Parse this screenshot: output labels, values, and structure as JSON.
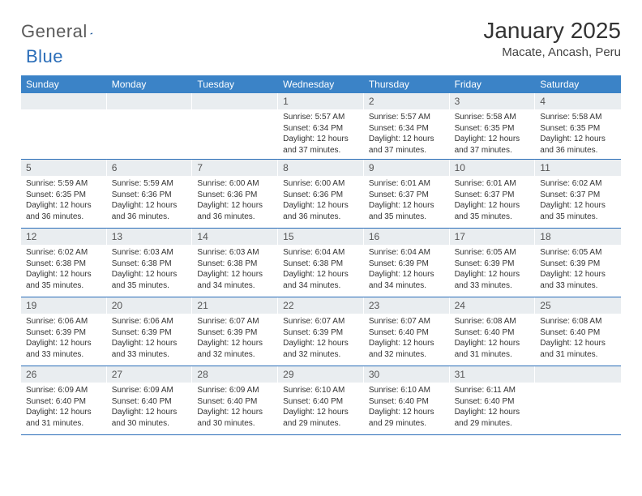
{
  "brand": {
    "part1": "General",
    "part2": "Blue"
  },
  "title": "January 2025",
  "subtitle": "Macate, Ancash, Peru",
  "colors": {
    "header_bg": "#3b83c7",
    "daynum_bg": "#e9edf0",
    "rule": "#2a6db8",
    "text": "#333333",
    "logo_gray": "#5a5a5a",
    "logo_blue": "#2a6db8",
    "bg": "#ffffff"
  },
  "day_names": [
    "Sunday",
    "Monday",
    "Tuesday",
    "Wednesday",
    "Thursday",
    "Friday",
    "Saturday"
  ],
  "weeks": [
    [
      null,
      null,
      null,
      {
        "n": "1",
        "rise": "5:57 AM",
        "set": "6:34 PM",
        "day": "12 hours and 37 minutes."
      },
      {
        "n": "2",
        "rise": "5:57 AM",
        "set": "6:34 PM",
        "day": "12 hours and 37 minutes."
      },
      {
        "n": "3",
        "rise": "5:58 AM",
        "set": "6:35 PM",
        "day": "12 hours and 37 minutes."
      },
      {
        "n": "4",
        "rise": "5:58 AM",
        "set": "6:35 PM",
        "day": "12 hours and 36 minutes."
      }
    ],
    [
      {
        "n": "5",
        "rise": "5:59 AM",
        "set": "6:35 PM",
        "day": "12 hours and 36 minutes."
      },
      {
        "n": "6",
        "rise": "5:59 AM",
        "set": "6:36 PM",
        "day": "12 hours and 36 minutes."
      },
      {
        "n": "7",
        "rise": "6:00 AM",
        "set": "6:36 PM",
        "day": "12 hours and 36 minutes."
      },
      {
        "n": "8",
        "rise": "6:00 AM",
        "set": "6:36 PM",
        "day": "12 hours and 36 minutes."
      },
      {
        "n": "9",
        "rise": "6:01 AM",
        "set": "6:37 PM",
        "day": "12 hours and 35 minutes."
      },
      {
        "n": "10",
        "rise": "6:01 AM",
        "set": "6:37 PM",
        "day": "12 hours and 35 minutes."
      },
      {
        "n": "11",
        "rise": "6:02 AM",
        "set": "6:37 PM",
        "day": "12 hours and 35 minutes."
      }
    ],
    [
      {
        "n": "12",
        "rise": "6:02 AM",
        "set": "6:38 PM",
        "day": "12 hours and 35 minutes."
      },
      {
        "n": "13",
        "rise": "6:03 AM",
        "set": "6:38 PM",
        "day": "12 hours and 35 minutes."
      },
      {
        "n": "14",
        "rise": "6:03 AM",
        "set": "6:38 PM",
        "day": "12 hours and 34 minutes."
      },
      {
        "n": "15",
        "rise": "6:04 AM",
        "set": "6:38 PM",
        "day": "12 hours and 34 minutes."
      },
      {
        "n": "16",
        "rise": "6:04 AM",
        "set": "6:39 PM",
        "day": "12 hours and 34 minutes."
      },
      {
        "n": "17",
        "rise": "6:05 AM",
        "set": "6:39 PM",
        "day": "12 hours and 33 minutes."
      },
      {
        "n": "18",
        "rise": "6:05 AM",
        "set": "6:39 PM",
        "day": "12 hours and 33 minutes."
      }
    ],
    [
      {
        "n": "19",
        "rise": "6:06 AM",
        "set": "6:39 PM",
        "day": "12 hours and 33 minutes."
      },
      {
        "n": "20",
        "rise": "6:06 AM",
        "set": "6:39 PM",
        "day": "12 hours and 33 minutes."
      },
      {
        "n": "21",
        "rise": "6:07 AM",
        "set": "6:39 PM",
        "day": "12 hours and 32 minutes."
      },
      {
        "n": "22",
        "rise": "6:07 AM",
        "set": "6:39 PM",
        "day": "12 hours and 32 minutes."
      },
      {
        "n": "23",
        "rise": "6:07 AM",
        "set": "6:40 PM",
        "day": "12 hours and 32 minutes."
      },
      {
        "n": "24",
        "rise": "6:08 AM",
        "set": "6:40 PM",
        "day": "12 hours and 31 minutes."
      },
      {
        "n": "25",
        "rise": "6:08 AM",
        "set": "6:40 PM",
        "day": "12 hours and 31 minutes."
      }
    ],
    [
      {
        "n": "26",
        "rise": "6:09 AM",
        "set": "6:40 PM",
        "day": "12 hours and 31 minutes."
      },
      {
        "n": "27",
        "rise": "6:09 AM",
        "set": "6:40 PM",
        "day": "12 hours and 30 minutes."
      },
      {
        "n": "28",
        "rise": "6:09 AM",
        "set": "6:40 PM",
        "day": "12 hours and 30 minutes."
      },
      {
        "n": "29",
        "rise": "6:10 AM",
        "set": "6:40 PM",
        "day": "12 hours and 29 minutes."
      },
      {
        "n": "30",
        "rise": "6:10 AM",
        "set": "6:40 PM",
        "day": "12 hours and 29 minutes."
      },
      {
        "n": "31",
        "rise": "6:11 AM",
        "set": "6:40 PM",
        "day": "12 hours and 29 minutes."
      },
      null
    ]
  ],
  "labels": {
    "sunrise": "Sunrise:",
    "sunset": "Sunset:",
    "daylight": "Daylight:"
  }
}
